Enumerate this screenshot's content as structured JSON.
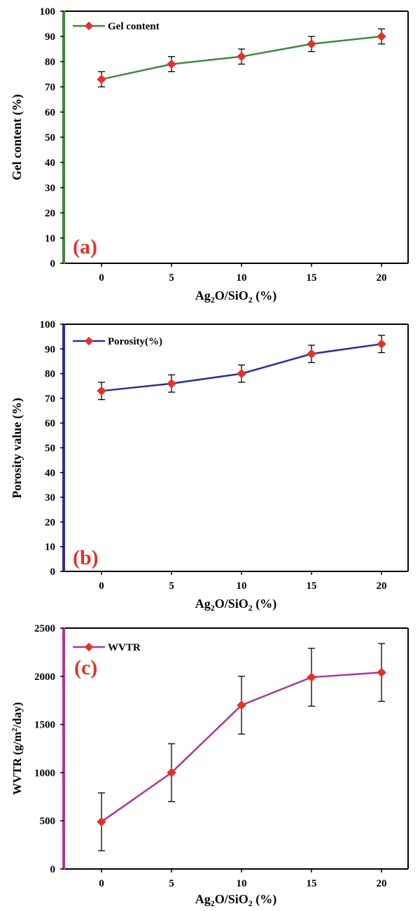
{
  "chart_data": [
    {
      "type": "line",
      "panel_label": "(a)",
      "x": [
        0,
        5,
        10,
        15,
        20
      ],
      "x_tick_labels": [
        "0",
        "5",
        "10",
        "15",
        "20"
      ],
      "xlabel": {
        "main": "Ag",
        "sub1": "2",
        "mid": "O/SiO",
        "sub2": "2",
        "tail": " (%)"
      },
      "ylabel": "Gel content (%)",
      "ylim": [
        0,
        100
      ],
      "y_ticks": [
        0,
        10,
        20,
        30,
        40,
        50,
        60,
        70,
        80,
        90,
        100
      ],
      "y_tick_labels": [
        "0",
        "10",
        "20",
        "30",
        "40",
        "50",
        "60",
        "70",
        "80",
        "90",
        "100"
      ],
      "grid": false,
      "legend": {
        "placement": "top-left"
      },
      "axis_color": "#3d8b37",
      "series": [
        {
          "name": "Gel content",
          "values": [
            73,
            79,
            82,
            87,
            90
          ],
          "errors": [
            3,
            3,
            3,
            3,
            3
          ],
          "color": "#3d8b37",
          "marker_color": "#e4322b"
        }
      ]
    },
    {
      "type": "line",
      "panel_label": "(b)",
      "x": [
        0,
        5,
        10,
        15,
        20
      ],
      "x_tick_labels": [
        "0",
        "5",
        "10",
        "15",
        "20"
      ],
      "xlabel": {
        "main": "Ag",
        "sub1": "2",
        "mid": "O/SiO",
        "sub2": "2",
        "tail": " (%)"
      },
      "ylabel": "Porosity value (%)",
      "ylim": [
        0,
        100
      ],
      "y_ticks": [
        0,
        10,
        20,
        30,
        40,
        50,
        60,
        70,
        80,
        90,
        100
      ],
      "y_tick_labels": [
        "0",
        "10",
        "20",
        "30",
        "40",
        "50",
        "60",
        "70",
        "80",
        "90",
        "100"
      ],
      "grid": false,
      "legend": {
        "placement": "top-left"
      },
      "axis_color": "#2b2f9e",
      "series": [
        {
          "name": "Porosity(%)",
          "values": [
            73,
            76,
            80,
            88,
            92
          ],
          "errors": [
            3.5,
            3.5,
            3.5,
            3.5,
            3.5
          ],
          "color": "#2b2f9e",
          "marker_color": "#e4322b"
        }
      ]
    },
    {
      "type": "line",
      "panel_label": "(c)",
      "x": [
        0,
        5,
        10,
        15,
        20
      ],
      "x_tick_labels": [
        "0",
        "5",
        "10",
        "15",
        "20"
      ],
      "xlabel": {
        "main": "Ag",
        "sub1": "2",
        "mid": "O/SiO",
        "sub2": "2",
        "tail": " (%)"
      },
      "ylabel": {
        "main": "WVTR (g/m",
        "sup": "2",
        "tail": "/day)"
      },
      "ylim": [
        0,
        2500
      ],
      "y_ticks": [
        0,
        500,
        1000,
        1500,
        2000,
        2500
      ],
      "y_tick_labels": [
        "0",
        "500",
        "1000",
        "1500",
        "2000",
        "2500"
      ],
      "grid": false,
      "legend": {
        "placement": "top-left"
      },
      "axis_color": "#b3339c",
      "series": [
        {
          "name": "WVTR",
          "values": [
            490,
            1000,
            1700,
            1990,
            2040
          ],
          "errors": [
            300,
            300,
            300,
            300,
            300
          ],
          "color": "#b3339c",
          "marker_color": "#e4322b"
        }
      ]
    }
  ]
}
